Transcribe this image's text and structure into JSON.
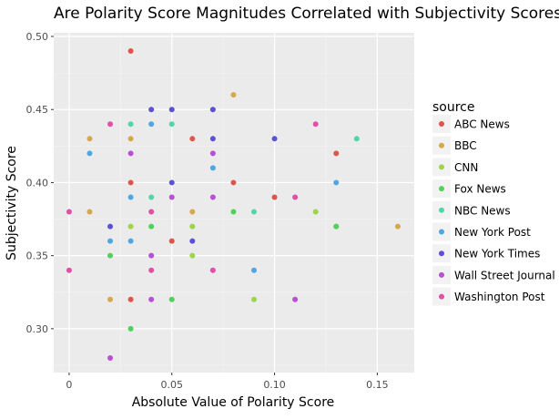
{
  "chart_data": {
    "type": "scatter",
    "title": "Are Polarity Score Magnitudes Correlated with Subjectivity Scores?",
    "xlabel": "Absolute Value of Polarity Score",
    "ylabel": "Subjectivity Score",
    "xlim": [
      -0.0075,
      0.168
    ],
    "ylim": [
      0.27,
      0.5025
    ],
    "xticks": [
      0,
      0.05,
      0.1,
      0.15
    ],
    "xtick_labels": [
      "0",
      "0.05",
      "0.10",
      "0.15"
    ],
    "yticks": [
      0.3,
      0.35,
      0.4,
      0.45,
      0.5
    ],
    "ytick_labels": [
      "0.30",
      "0.35",
      "0.40",
      "0.45",
      "0.50"
    ],
    "grid": true,
    "legend_title": "source",
    "legend_position": "right",
    "series": [
      {
        "name": "ABC News",
        "color": "#e1544a",
        "points": [
          [
            0.03,
            0.49
          ],
          [
            0.03,
            0.4
          ],
          [
            0.03,
            0.32
          ],
          [
            0.05,
            0.36
          ],
          [
            0.06,
            0.43
          ],
          [
            0.08,
            0.4
          ],
          [
            0.1,
            0.39
          ],
          [
            0.13,
            0.42
          ]
        ]
      },
      {
        "name": "BBC",
        "color": "#d5a84a",
        "points": [
          [
            0.01,
            0.43
          ],
          [
            0.01,
            0.38
          ],
          [
            0.02,
            0.32
          ],
          [
            0.03,
            0.43
          ],
          [
            0.06,
            0.38
          ],
          [
            0.08,
            0.46
          ],
          [
            0.16,
            0.37
          ]
        ]
      },
      {
        "name": "CNN",
        "color": "#9ed44a",
        "points": [
          [
            0.03,
            0.37
          ],
          [
            0.06,
            0.37
          ],
          [
            0.06,
            0.35
          ],
          [
            0.09,
            0.32
          ],
          [
            0.12,
            0.38
          ],
          [
            0.13,
            0.37
          ]
        ]
      },
      {
        "name": "Fox News",
        "color": "#4fd15a",
        "points": [
          [
            0.02,
            0.35
          ],
          [
            0.03,
            0.3
          ],
          [
            0.04,
            0.37
          ],
          [
            0.05,
            0.32
          ],
          [
            0.08,
            0.38
          ],
          [
            0.13,
            0.37
          ]
        ]
      },
      {
        "name": "NBC News",
        "color": "#4fd7a6",
        "points": [
          [
            0.03,
            0.44
          ],
          [
            0.04,
            0.39
          ],
          [
            0.05,
            0.44
          ],
          [
            0.09,
            0.38
          ],
          [
            0.14,
            0.43
          ]
        ]
      },
      {
        "name": "New York Post",
        "color": "#4fa7e1",
        "points": [
          [
            0.01,
            0.42
          ],
          [
            0.02,
            0.36
          ],
          [
            0.03,
            0.39
          ],
          [
            0.03,
            0.36
          ],
          [
            0.04,
            0.44
          ],
          [
            0.07,
            0.41
          ],
          [
            0.09,
            0.34
          ],
          [
            0.13,
            0.4
          ]
        ]
      },
      {
        "name": "New York Times",
        "color": "#5b50d6",
        "points": [
          [
            0.02,
            0.37
          ],
          [
            0.04,
            0.45
          ],
          [
            0.05,
            0.45
          ],
          [
            0.05,
            0.4
          ],
          [
            0.06,
            0.36
          ],
          [
            0.07,
            0.45
          ],
          [
            0.07,
            0.43
          ],
          [
            0.1,
            0.43
          ]
        ]
      },
      {
        "name": "Wall Street Journal",
        "color": "#b84fd6",
        "points": [
          [
            0.02,
            0.28
          ],
          [
            0.03,
            0.42
          ],
          [
            0.04,
            0.35
          ],
          [
            0.04,
            0.32
          ],
          [
            0.05,
            0.39
          ],
          [
            0.07,
            0.42
          ],
          [
            0.07,
            0.39
          ],
          [
            0.11,
            0.32
          ]
        ]
      },
      {
        "name": "Washington Post",
        "color": "#e14fa6",
        "points": [
          [
            0.0,
            0.38
          ],
          [
            0.0,
            0.34
          ],
          [
            0.02,
            0.44
          ],
          [
            0.04,
            0.38
          ],
          [
            0.04,
            0.34
          ],
          [
            0.07,
            0.34
          ],
          [
            0.11,
            0.39
          ],
          [
            0.12,
            0.44
          ]
        ]
      }
    ]
  }
}
